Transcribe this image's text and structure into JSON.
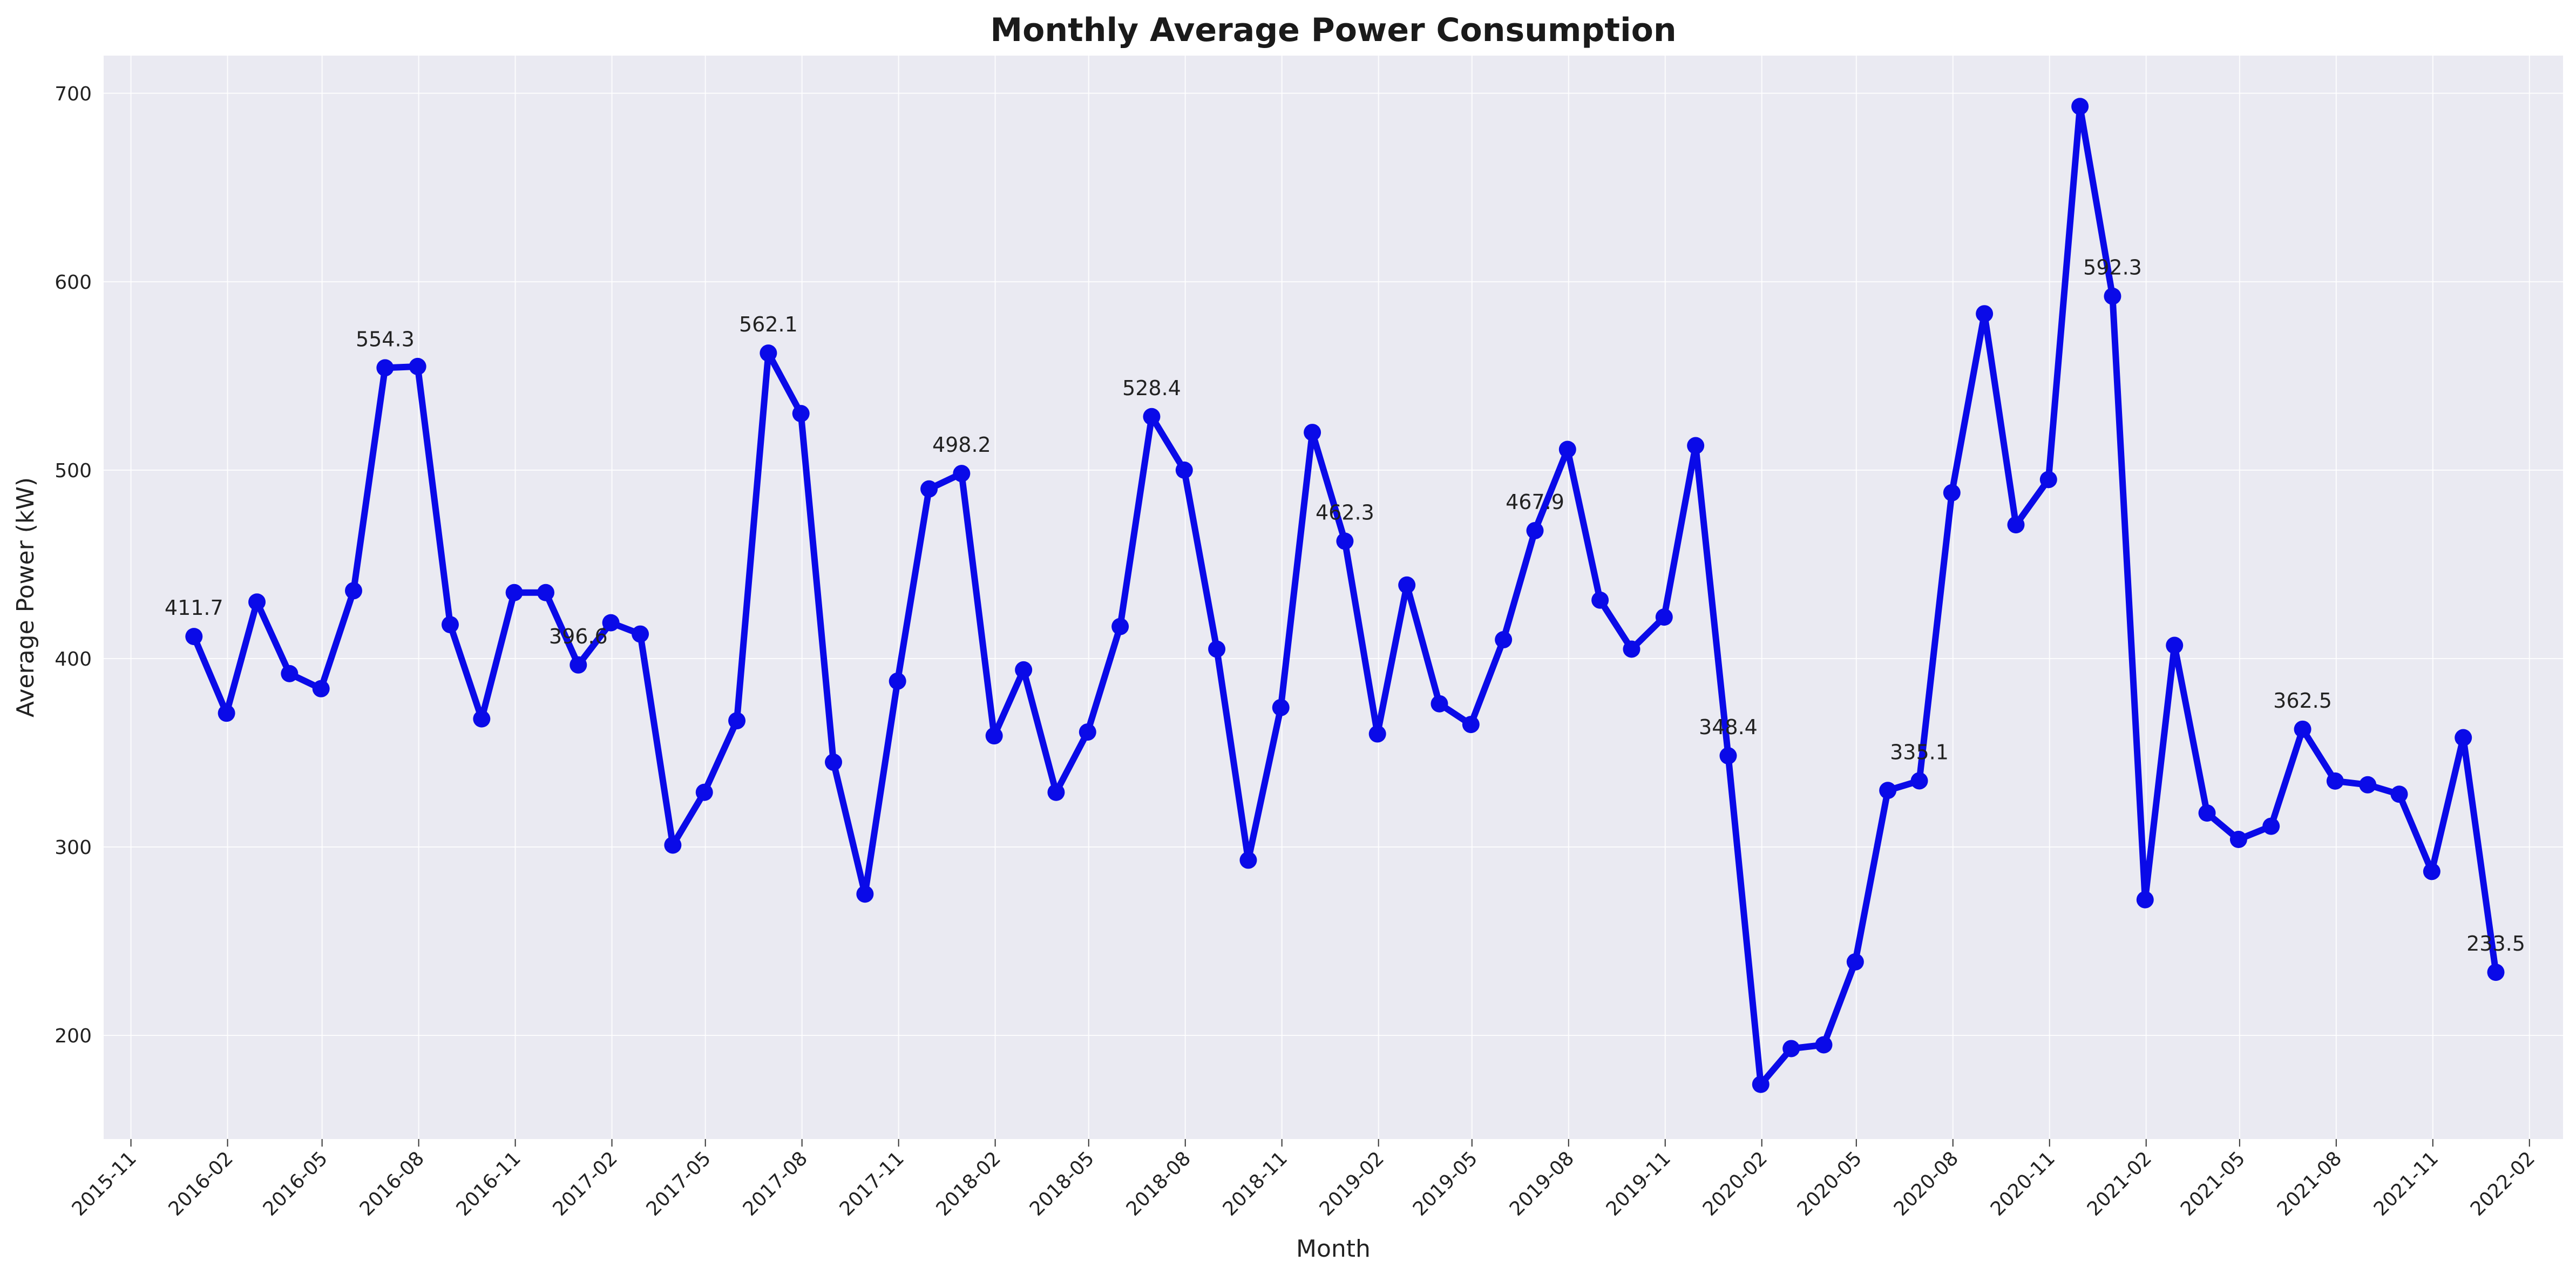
{
  "chart_data": {
    "type": "line",
    "title": "Monthly Average Power Consumption",
    "xlabel": "Month",
    "ylabel": "Average Power (kW)",
    "ylim": [
      145,
      720
    ],
    "yticks": [
      200,
      300,
      400,
      500,
      600,
      700
    ],
    "xlim": [
      "2015-10-06",
      "2022-03-05"
    ],
    "xticks": [
      "2015-11",
      "2016-02",
      "2016-05",
      "2016-08",
      "2016-11",
      "2017-02",
      "2017-05",
      "2017-08",
      "2017-11",
      "2018-02",
      "2018-05",
      "2018-08",
      "2018-11",
      "2019-02",
      "2019-05",
      "2019-08",
      "2019-11",
      "2020-02",
      "2020-05",
      "2020-08",
      "2020-11",
      "2021-02",
      "2021-05",
      "2021-08",
      "2021-11",
      "2022-02"
    ],
    "grid": true,
    "background": "#eaeaf2",
    "line_color": "#0a0ae8",
    "series": [
      {
        "x": [
          "2015-12-31",
          "2016-01-31",
          "2016-02-29",
          "2016-03-31",
          "2016-04-30",
          "2016-05-31",
          "2016-06-30",
          "2016-07-31",
          "2016-08-31",
          "2016-09-30",
          "2016-10-31",
          "2016-11-30",
          "2016-12-31",
          "2017-01-31",
          "2017-02-28",
          "2017-03-31",
          "2017-04-30",
          "2017-05-31",
          "2017-06-30",
          "2017-07-31",
          "2017-08-31",
          "2017-09-30",
          "2017-10-31",
          "2017-11-30",
          "2017-12-31",
          "2018-01-31",
          "2018-02-28",
          "2018-03-31",
          "2018-04-30",
          "2018-05-31",
          "2018-06-30",
          "2018-07-31",
          "2018-08-31",
          "2018-09-30",
          "2018-10-31",
          "2018-11-30",
          "2018-12-31",
          "2019-01-31",
          "2019-02-28",
          "2019-03-31",
          "2019-04-30",
          "2019-05-31",
          "2019-06-30",
          "2019-07-31",
          "2019-08-31",
          "2019-09-30",
          "2019-10-31",
          "2019-11-30",
          "2019-12-31",
          "2020-01-31",
          "2020-02-29",
          "2020-03-31",
          "2020-04-30",
          "2020-05-31",
          "2020-06-30",
          "2020-07-31",
          "2020-08-31",
          "2020-09-30",
          "2020-10-31",
          "2020-11-30",
          "2020-12-31",
          "2021-01-31",
          "2021-02-28",
          "2021-03-31",
          "2021-04-30",
          "2021-05-31",
          "2021-06-30",
          "2021-07-31",
          "2021-08-31",
          "2021-09-30",
          "2021-10-31",
          "2021-11-30",
          "2021-12-31"
        ],
        "values": [
          411.7,
          371,
          430,
          392,
          384,
          436,
          554.3,
          555,
          418,
          368,
          435,
          435,
          396.6,
          419,
          413,
          301,
          329,
          367,
          562.1,
          530,
          345,
          275,
          388,
          490,
          498.2,
          359,
          394,
          329,
          361,
          417,
          528.4,
          500,
          405,
          293,
          374,
          520,
          462.3,
          360,
          439,
          376,
          365,
          410,
          467.9,
          511,
          431,
          405,
          422,
          513,
          348.4,
          174,
          193,
          195,
          239,
          330,
          335.1,
          488,
          583,
          471,
          495,
          693,
          592.3,
          272,
          407,
          318,
          304,
          311,
          362.5,
          335,
          333,
          328,
          287,
          358,
          233.5
        ]
      }
    ],
    "annotations": [
      {
        "x": "2015-12-31",
        "text": "411.7"
      },
      {
        "x": "2016-06-30",
        "text": "554.3"
      },
      {
        "x": "2016-12-31",
        "text": "396.6"
      },
      {
        "x": "2017-06-30",
        "text": "562.1"
      },
      {
        "x": "2017-12-31",
        "text": "498.2"
      },
      {
        "x": "2018-06-30",
        "text": "528.4"
      },
      {
        "x": "2018-12-31",
        "text": "462.3"
      },
      {
        "x": "2019-06-30",
        "text": "467.9"
      },
      {
        "x": "2019-12-31",
        "text": "348.4"
      },
      {
        "x": "2020-06-30",
        "text": "335.1"
      },
      {
        "x": "2020-12-31",
        "text": "592.3"
      },
      {
        "x": "2021-06-30",
        "text": "362.5"
      },
      {
        "x": "2021-12-31",
        "text": "233.5"
      }
    ]
  }
}
